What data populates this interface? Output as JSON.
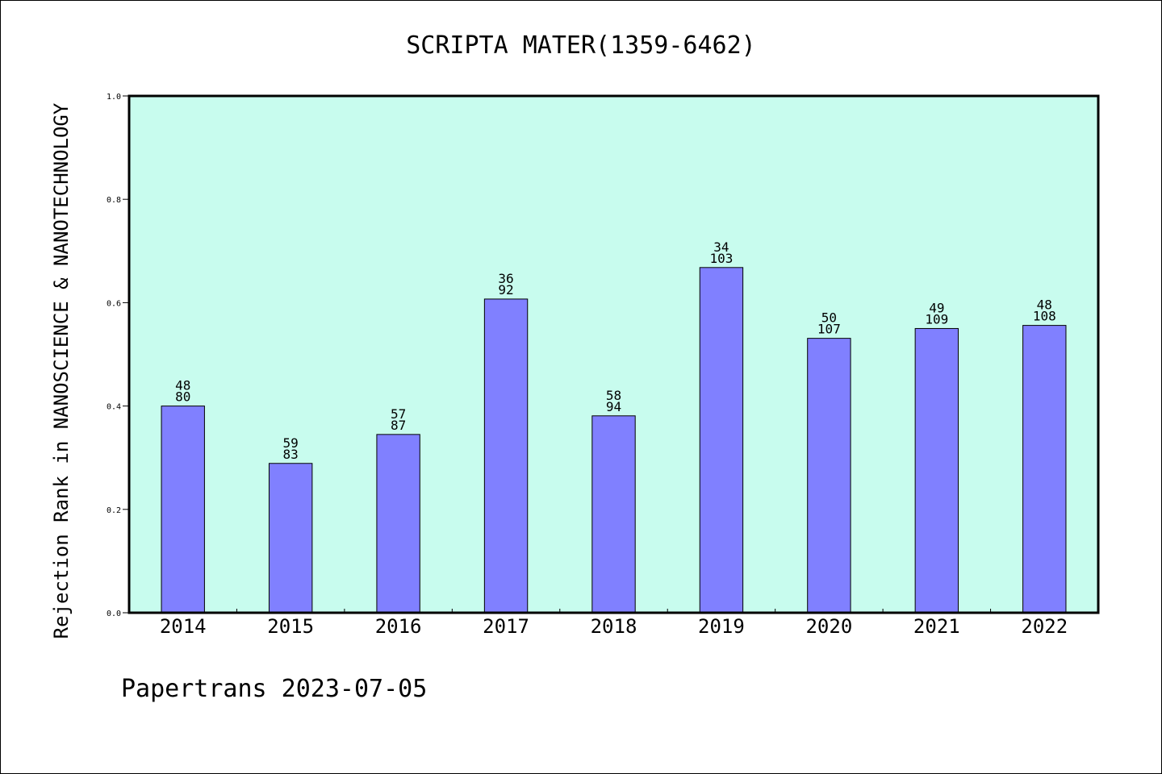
{
  "chart_data": {
    "type": "bar",
    "title": "SCRIPTA MATER(1359-6462)",
    "xlabel": "",
    "ylabel": "Rejection Rank in NANOSCIENCE & NANOTECHNOLOGY",
    "ylim": [
      0,
      1.0
    ],
    "yticks": [
      "0.0",
      "0.2",
      "0.4",
      "0.6",
      "0.8",
      "1.0"
    ],
    "categories": [
      "2014",
      "2015",
      "2016",
      "2017",
      "2018",
      "2019",
      "2020",
      "2021",
      "2022"
    ],
    "values": [
      0.4,
      0.289,
      0.345,
      0.607,
      0.381,
      0.668,
      0.531,
      0.55,
      0.556
    ],
    "label_top": [
      "48",
      "59",
      "57",
      "36",
      "58",
      "34",
      "50",
      "49",
      "48"
    ],
    "label_bottom": [
      "80",
      "83",
      "87",
      "92",
      "94",
      "103",
      "107",
      "109",
      "108"
    ],
    "grid": false,
    "colors": {
      "plot_background": "#c8fcee",
      "bar_fill": "#8080ff",
      "bar_stroke": "#000000"
    }
  },
  "footer": {
    "text": "Papertrans 2023-07-05"
  }
}
